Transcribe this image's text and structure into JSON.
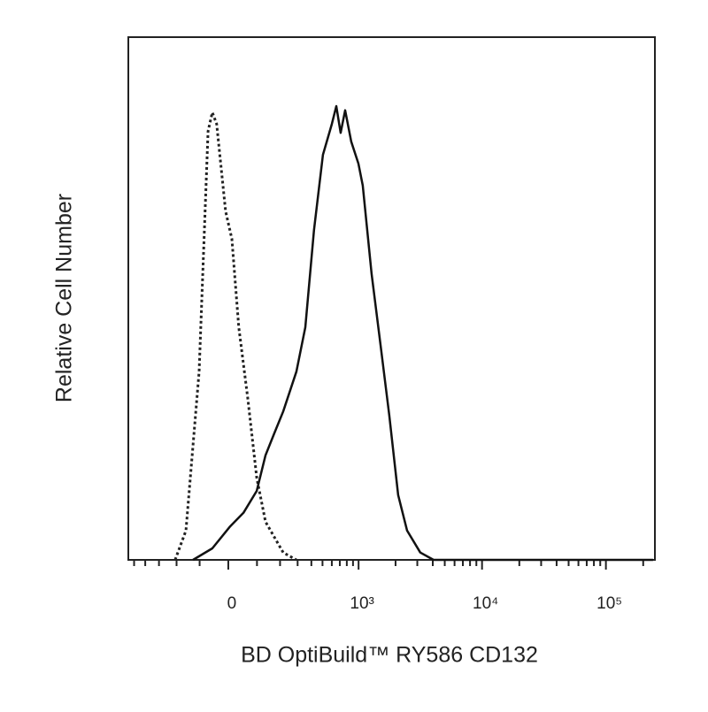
{
  "chart_data": {
    "type": "line",
    "xlabel": "BD OptiBuild™ RY586 CD132",
    "ylabel": "Relative Cell Number",
    "xscale": "biexponential",
    "xlim": [
      -560,
      248600
    ],
    "xticks": [
      {
        "value": 0,
        "label": "0"
      },
      {
        "value": 1000,
        "label": "10³"
      },
      {
        "value": 10000,
        "label": "10⁴"
      },
      {
        "value": 100000,
        "label": "10⁵"
      }
    ],
    "xminorticks": [
      -500,
      -400,
      -300,
      -200,
      -100,
      100,
      200,
      300,
      400,
      500,
      600,
      700,
      800,
      900,
      2000,
      3000,
      4000,
      5000,
      6000,
      7000,
      8000,
      9000,
      20000,
      30000,
      40000,
      50000,
      60000,
      70000,
      80000,
      90000,
      200000
    ],
    "ylim": [
      0,
      100
    ],
    "series": [
      {
        "color": "#222222",
        "dash": "dotted",
        "x": [
          -207,
          -156,
          -102,
          -69,
          -54,
          -39,
          -9,
          12,
          35,
          66,
          99,
          134,
          216,
          292
        ],
        "values": [
          0,
          5.6,
          36,
          82,
          85.6,
          83.4,
          66.7,
          61.4,
          44.5,
          31,
          15.7,
          7.3,
          1.4,
          0
        ]
      },
      {
        "color": "#111111",
        "dash": "solid",
        "x": [
          -126,
          -54,
          6,
          51,
          99,
          134,
          172,
          216,
          292,
          353,
          422,
          504,
          601,
          654,
          711,
          775,
          871,
          997,
          1083,
          1278,
          1511,
          1781,
          2101,
          2479,
          3174,
          4063,
          240000
        ],
        "values": [
          0,
          2.2,
          6.4,
          9.0,
          13.2,
          20,
          24.2,
          28.4,
          36,
          44.5,
          63.1,
          77.5,
          83.4,
          86.8,
          81.7,
          86,
          80,
          75.8,
          71.6,
          54.7,
          41.1,
          27.6,
          12.4,
          5.6,
          1.4,
          0,
          0
        ]
      }
    ]
  }
}
